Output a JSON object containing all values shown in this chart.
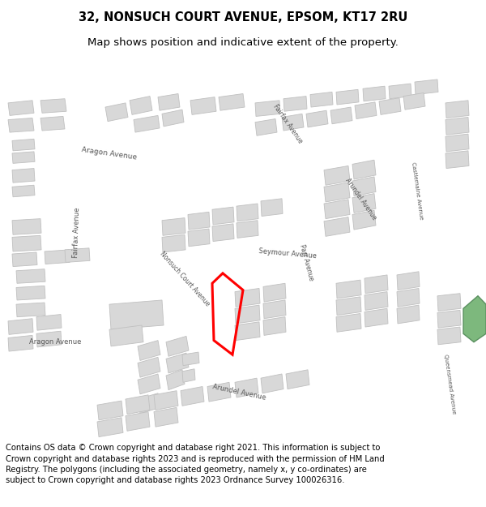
{
  "title_line1": "32, NONSUCH COURT AVENUE, EPSOM, KT17 2RU",
  "title_line2": "Map shows position and indicative extent of the property.",
  "copyright_text": "Contains OS data © Crown copyright and database right 2021. This information is subject to Crown copyright and database rights 2023 and is reproduced with the permission of HM Land Registry. The polygons (including the associated geometry, namely x, y co-ordinates) are subject to Crown copyright and database rights 2023 Ordnance Survey 100026316.",
  "title_fontsize": 10.5,
  "subtitle_fontsize": 9.5,
  "copyright_fontsize": 7.2,
  "map_bg": "#efefef",
  "road_color": "#ffffff",
  "building_color": "#d8d8d8",
  "building_outline": "#c0c0c0",
  "text_color": "#555555",
  "green_color": "#7db87d",
  "red_color": "#ff0000"
}
